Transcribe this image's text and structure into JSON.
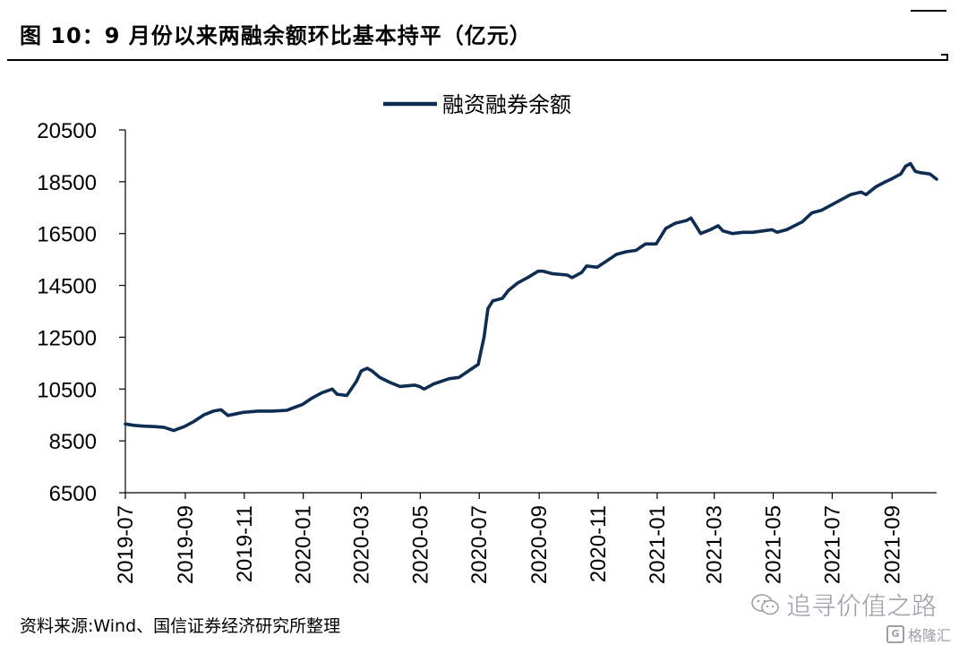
{
  "header": {
    "title": "图 10：9 月份以来两融余额环比基本持平（亿元）"
  },
  "footer": {
    "source": "资料来源:Wind、国信证券经济研究所整理"
  },
  "watermark": {
    "text": "追寻价值之路",
    "icon": "wechat-icon",
    "brand_text": "格隆汇",
    "brand_icon": "gelonghui-icon"
  },
  "chart_data": {
    "type": "line",
    "title": "",
    "xlabel": "",
    "ylabel": "",
    "legend_position": "top-center",
    "grid": false,
    "ylim": [
      6500,
      20500
    ],
    "xlim": [
      "2019-07",
      "2021-10-17"
    ],
    "y_ticks": [
      "20500",
      "18500",
      "16500",
      "14500",
      "12500",
      "10500",
      "8500",
      "6500"
    ],
    "x_ticks": [
      "2019-07",
      "2019-09",
      "2019-11",
      "2020-01",
      "2020-03",
      "2020-05",
      "2020-07",
      "2020-09",
      "2020-11",
      "2021-01",
      "2021-03",
      "2021-05",
      "2021-07",
      "2021-09"
    ],
    "series": [
      {
        "name": "融资融券余额",
        "color": "#0f2d52",
        "points": [
          [
            "2019-07-01",
            9150
          ],
          [
            "2019-07-10",
            9100
          ],
          [
            "2019-07-20",
            9070
          ],
          [
            "2019-07-31",
            9050
          ],
          [
            "2019-08-10",
            9020
          ],
          [
            "2019-08-20",
            8900
          ],
          [
            "2019-08-31",
            9050
          ],
          [
            "2019-09-10",
            9250
          ],
          [
            "2019-09-20",
            9500
          ],
          [
            "2019-09-30",
            9650
          ],
          [
            "2019-10-08",
            9700
          ],
          [
            "2019-10-15",
            9480
          ],
          [
            "2019-10-31",
            9600
          ],
          [
            "2019-11-15",
            9650
          ],
          [
            "2019-11-30",
            9650
          ],
          [
            "2019-12-15",
            9680
          ],
          [
            "2019-12-31",
            9900
          ],
          [
            "2020-01-10",
            10150
          ],
          [
            "2020-01-20",
            10350
          ],
          [
            "2020-01-31",
            10500
          ],
          [
            "2020-02-05",
            10300
          ],
          [
            "2020-02-15",
            10250
          ],
          [
            "2020-02-25",
            10800
          ],
          [
            "2020-03-01",
            11200
          ],
          [
            "2020-03-07",
            11300
          ],
          [
            "2020-03-12",
            11200
          ],
          [
            "2020-03-20",
            10950
          ],
          [
            "2020-03-31",
            10750
          ],
          [
            "2020-04-10",
            10600
          ],
          [
            "2020-04-25",
            10650
          ],
          [
            "2020-04-30",
            10600
          ],
          [
            "2020-05-05",
            10500
          ],
          [
            "2020-05-15",
            10700
          ],
          [
            "2020-05-31",
            10900
          ],
          [
            "2020-06-10",
            10950
          ],
          [
            "2020-06-20",
            11200
          ],
          [
            "2020-06-30",
            11450
          ],
          [
            "2020-07-03",
            12000
          ],
          [
            "2020-07-06",
            12500
          ],
          [
            "2020-07-10",
            13600
          ],
          [
            "2020-07-15",
            13900
          ],
          [
            "2020-07-25",
            14000
          ],
          [
            "2020-07-31",
            14300
          ],
          [
            "2020-08-10",
            14600
          ],
          [
            "2020-08-20",
            14800
          ],
          [
            "2020-08-31",
            15050
          ],
          [
            "2020-09-05",
            15050
          ],
          [
            "2020-09-15",
            14950
          ],
          [
            "2020-09-30",
            14900
          ],
          [
            "2020-10-05",
            14800
          ],
          [
            "2020-10-15",
            15000
          ],
          [
            "2020-10-20",
            15250
          ],
          [
            "2020-10-31",
            15200
          ],
          [
            "2020-11-10",
            15450
          ],
          [
            "2020-11-20",
            15700
          ],
          [
            "2020-11-30",
            15800
          ],
          [
            "2020-12-10",
            15850
          ],
          [
            "2020-12-20",
            16100
          ],
          [
            "2020-12-31",
            16100
          ],
          [
            "2021-01-10",
            16700
          ],
          [
            "2021-01-20",
            16900
          ],
          [
            "2021-01-31",
            17000
          ],
          [
            "2021-02-05",
            17100
          ],
          [
            "2021-02-10",
            16800
          ],
          [
            "2021-02-15",
            16500
          ],
          [
            "2021-02-25",
            16650
          ],
          [
            "2021-03-05",
            16800
          ],
          [
            "2021-03-10",
            16600
          ],
          [
            "2021-03-20",
            16500
          ],
          [
            "2021-03-31",
            16550
          ],
          [
            "2021-04-10",
            16550
          ],
          [
            "2021-04-20",
            16600
          ],
          [
            "2021-04-30",
            16650
          ],
          [
            "2021-05-05",
            16550
          ],
          [
            "2021-05-15",
            16650
          ],
          [
            "2021-05-31",
            16950
          ],
          [
            "2021-06-10",
            17300
          ],
          [
            "2021-06-20",
            17400
          ],
          [
            "2021-06-30",
            17600
          ],
          [
            "2021-07-10",
            17800
          ],
          [
            "2021-07-20",
            18000
          ],
          [
            "2021-07-31",
            18100
          ],
          [
            "2021-08-05",
            18000
          ],
          [
            "2021-08-15",
            18300
          ],
          [
            "2021-08-25",
            18500
          ],
          [
            "2021-08-31",
            18600
          ],
          [
            "2021-09-05",
            18700
          ],
          [
            "2021-09-10",
            18800
          ],
          [
            "2021-09-15",
            19100
          ],
          [
            "2021-09-20",
            19200
          ],
          [
            "2021-09-25",
            18900
          ],
          [
            "2021-09-30",
            18850
          ],
          [
            "2021-10-10",
            18800
          ],
          [
            "2021-10-17",
            18600
          ]
        ]
      }
    ]
  }
}
